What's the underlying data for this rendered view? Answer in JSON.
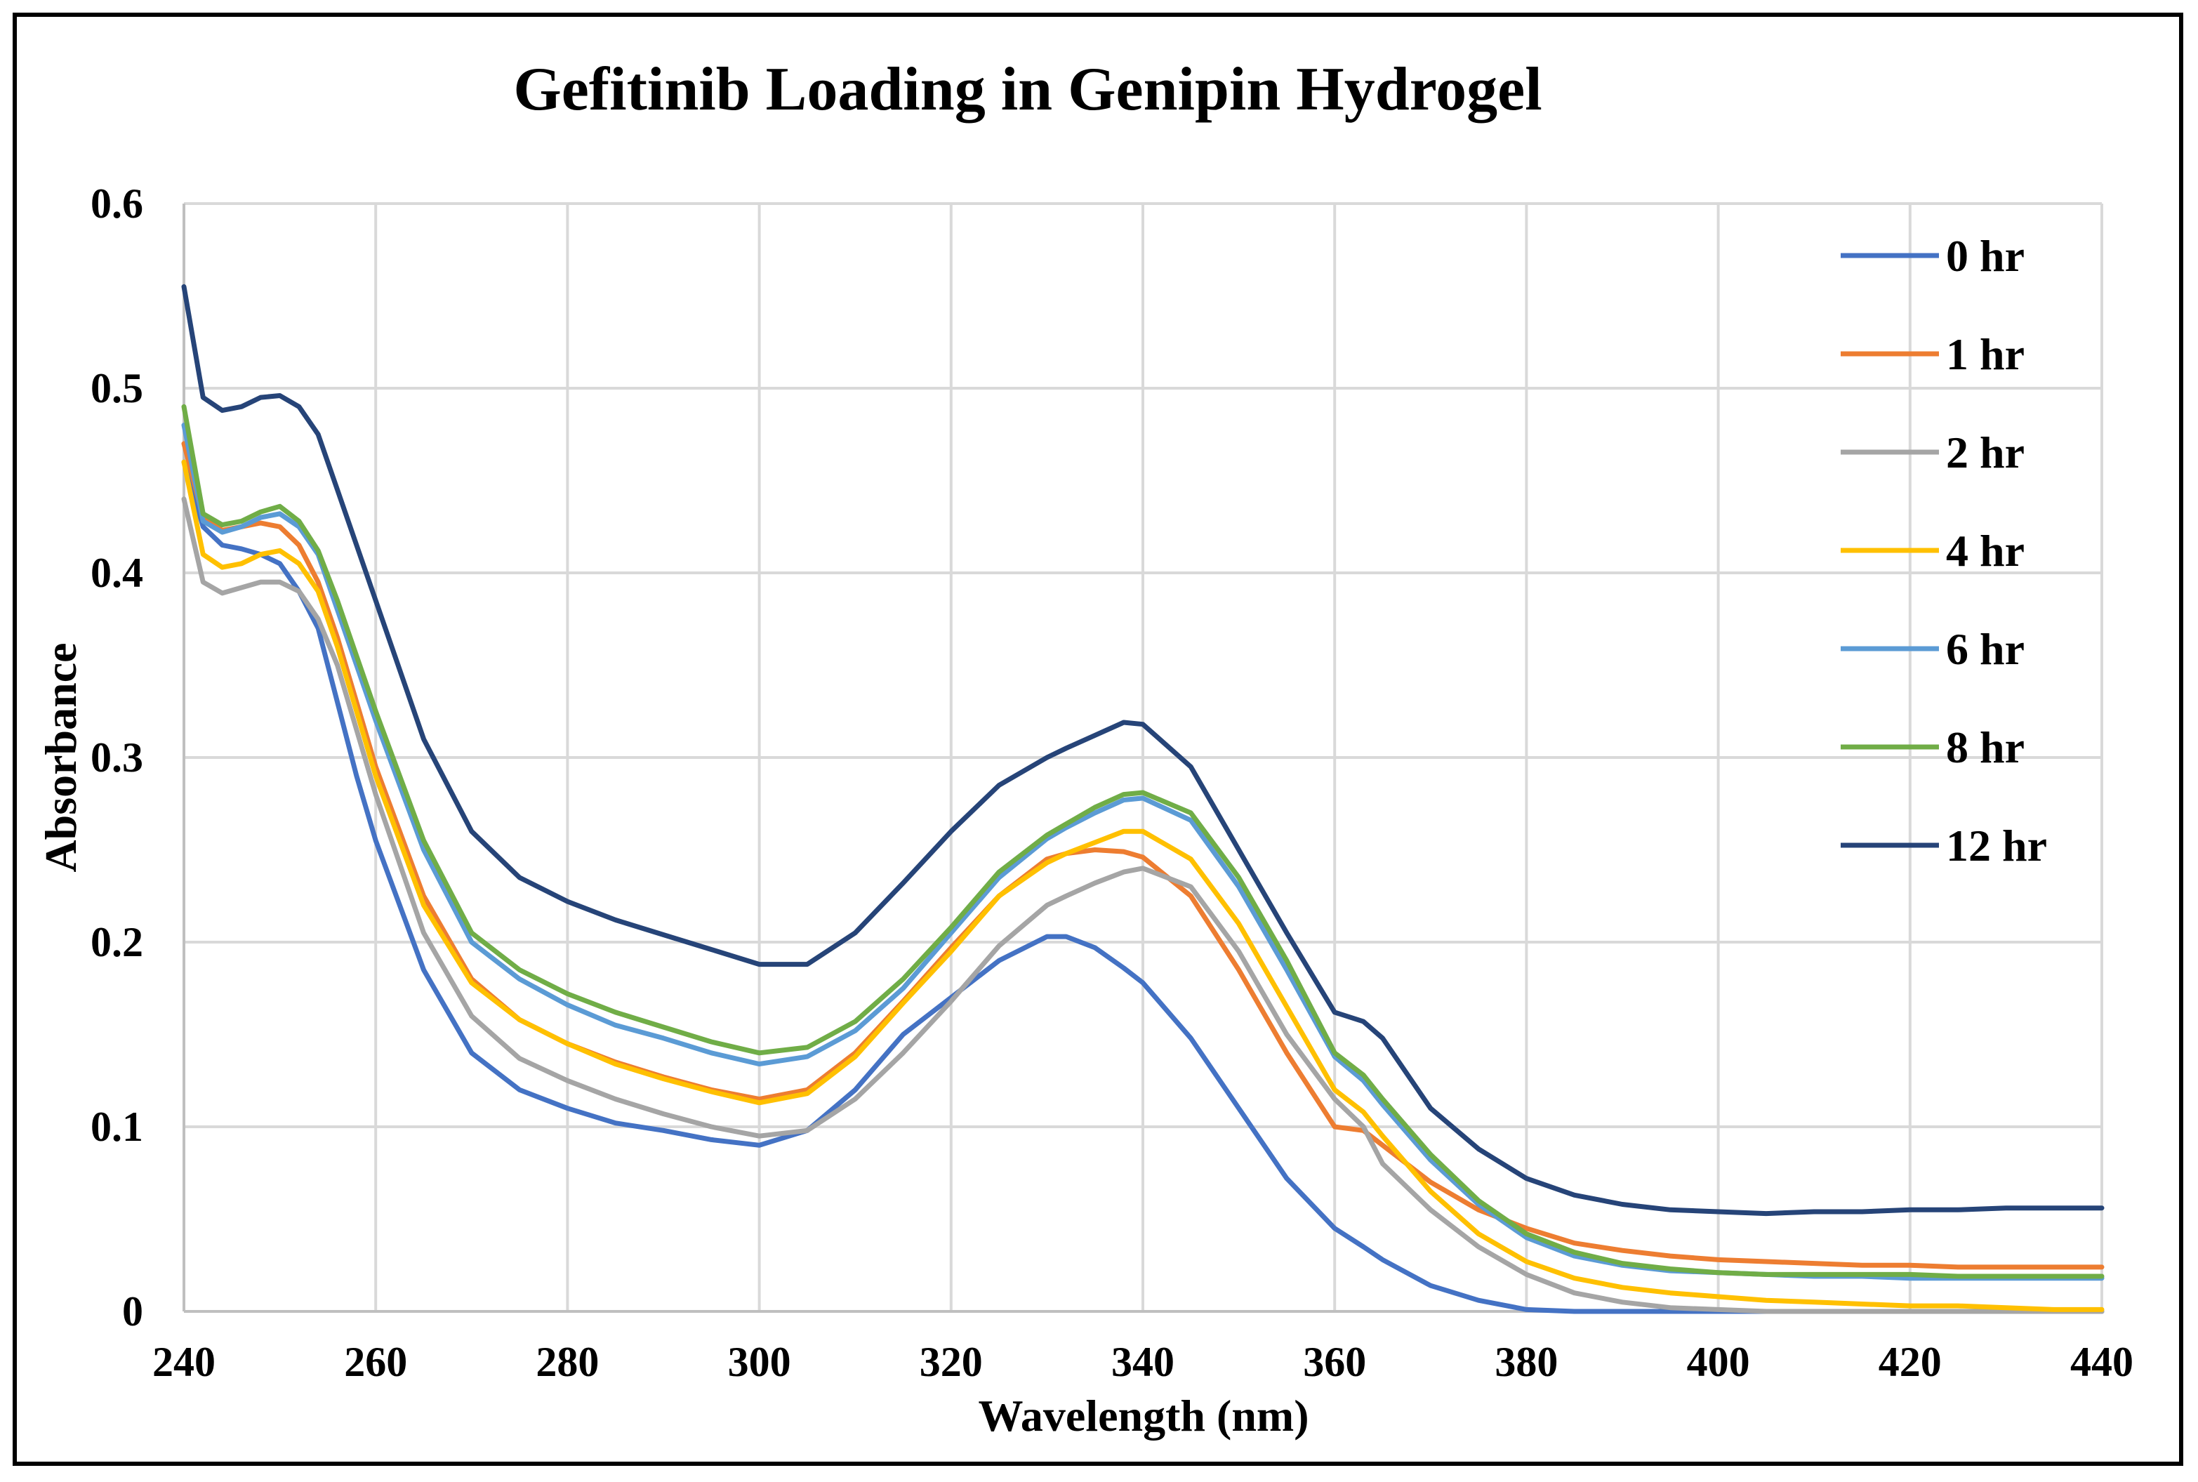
{
  "chart_data": {
    "type": "line",
    "title": "Gefitinib Loading in Genipin Hydrogel",
    "xlabel": "Wavelength (nm)",
    "ylabel": "Absorbance",
    "xlim": [
      240,
      440
    ],
    "ylim": [
      0,
      0.6
    ],
    "xticks": [
      240,
      260,
      280,
      300,
      320,
      340,
      360,
      380,
      400,
      420,
      440
    ],
    "yticks": [
      0,
      0.1,
      0.2,
      0.3,
      0.4,
      0.5,
      0.6
    ],
    "xtick_labels": [
      "240",
      "260",
      "280",
      "300",
      "320",
      "340",
      "360",
      "380",
      "400",
      "420",
      "440"
    ],
    "ytick_labels": [
      "0",
      "0.1",
      "0.2",
      "0.3",
      "0.4",
      "0.5",
      "0.6"
    ],
    "grid": true,
    "legend_position": "right",
    "x": [
      240,
      242,
      244,
      246,
      248,
      250,
      252,
      254,
      256,
      258,
      260,
      265,
      270,
      275,
      280,
      285,
      290,
      295,
      300,
      305,
      310,
      315,
      320,
      325,
      330,
      332,
      335,
      338,
      340,
      345,
      350,
      355,
      360,
      363,
      365,
      370,
      375,
      380,
      385,
      390,
      395,
      400,
      405,
      410,
      415,
      420,
      425,
      430,
      435,
      440
    ],
    "series": [
      {
        "name": "0 hr",
        "color": "#4472C4",
        "values": [
          0.46,
          0.425,
          0.415,
          0.413,
          0.41,
          0.405,
          0.39,
          0.37,
          0.33,
          0.29,
          0.255,
          0.185,
          0.14,
          0.12,
          0.11,
          0.102,
          0.098,
          0.093,
          0.09,
          0.098,
          0.12,
          0.15,
          0.17,
          0.19,
          0.203,
          0.203,
          0.197,
          0.186,
          0.178,
          0.148,
          0.11,
          0.072,
          0.045,
          0.035,
          0.028,
          0.014,
          0.006,
          0.001,
          0.0,
          0.0,
          0.0,
          0.0,
          0.0,
          0.0,
          0.0,
          0.0,
          0.0,
          0.0,
          0.0,
          0.0
        ]
      },
      {
        "name": "1 hr",
        "color": "#ED7D31",
        "values": [
          0.47,
          0.43,
          0.423,
          0.425,
          0.427,
          0.425,
          0.415,
          0.395,
          0.365,
          0.33,
          0.295,
          0.225,
          0.18,
          0.158,
          0.145,
          0.135,
          0.127,
          0.12,
          0.115,
          0.12,
          0.14,
          0.168,
          0.197,
          0.225,
          0.245,
          0.248,
          0.25,
          0.249,
          0.246,
          0.225,
          0.185,
          0.14,
          0.1,
          0.098,
          0.09,
          0.07,
          0.055,
          0.045,
          0.037,
          0.033,
          0.03,
          0.028,
          0.027,
          0.026,
          0.025,
          0.025,
          0.024,
          0.024,
          0.024,
          0.024
        ]
      },
      {
        "name": "2 hr",
        "color": "#A5A5A5",
        "values": [
          0.44,
          0.395,
          0.389,
          0.392,
          0.395,
          0.395,
          0.39,
          0.375,
          0.35,
          0.315,
          0.28,
          0.205,
          0.16,
          0.137,
          0.125,
          0.115,
          0.107,
          0.1,
          0.095,
          0.098,
          0.115,
          0.14,
          0.168,
          0.198,
          0.22,
          0.225,
          0.232,
          0.238,
          0.24,
          0.23,
          0.195,
          0.15,
          0.115,
          0.1,
          0.08,
          0.055,
          0.035,
          0.02,
          0.01,
          0.005,
          0.002,
          0.001,
          0.0,
          0.0,
          0.0,
          0.0,
          0.0,
          0.0,
          0.0,
          0.0
        ]
      },
      {
        "name": "4 hr",
        "color": "#FFC000",
        "values": [
          0.46,
          0.41,
          0.403,
          0.405,
          0.41,
          0.412,
          0.405,
          0.39,
          0.36,
          0.325,
          0.29,
          0.22,
          0.178,
          0.158,
          0.145,
          0.134,
          0.126,
          0.119,
          0.113,
          0.118,
          0.138,
          0.167,
          0.195,
          0.225,
          0.243,
          0.248,
          0.254,
          0.26,
          0.26,
          0.245,
          0.21,
          0.165,
          0.12,
          0.108,
          0.095,
          0.065,
          0.042,
          0.027,
          0.018,
          0.013,
          0.01,
          0.008,
          0.006,
          0.005,
          0.004,
          0.003,
          0.003,
          0.002,
          0.001,
          0.001
        ]
      },
      {
        "name": "6 hr",
        "color": "#5B9BD5",
        "values": [
          0.48,
          0.428,
          0.422,
          0.425,
          0.43,
          0.432,
          0.425,
          0.41,
          0.38,
          0.35,
          0.32,
          0.25,
          0.2,
          0.18,
          0.166,
          0.155,
          0.148,
          0.14,
          0.134,
          0.138,
          0.152,
          0.175,
          0.205,
          0.235,
          0.256,
          0.262,
          0.27,
          0.277,
          0.278,
          0.266,
          0.23,
          0.185,
          0.138,
          0.125,
          0.112,
          0.082,
          0.058,
          0.04,
          0.03,
          0.025,
          0.022,
          0.021,
          0.02,
          0.019,
          0.019,
          0.018,
          0.018,
          0.018,
          0.018,
          0.018
        ]
      },
      {
        "name": "8 hr",
        "color": "#70AD47",
        "values": [
          0.49,
          0.432,
          0.426,
          0.428,
          0.433,
          0.436,
          0.428,
          0.412,
          0.385,
          0.355,
          0.325,
          0.255,
          0.205,
          0.185,
          0.172,
          0.162,
          0.154,
          0.146,
          0.14,
          0.143,
          0.157,
          0.18,
          0.208,
          0.238,
          0.258,
          0.264,
          0.273,
          0.28,
          0.281,
          0.27,
          0.235,
          0.19,
          0.14,
          0.128,
          0.115,
          0.085,
          0.06,
          0.042,
          0.032,
          0.026,
          0.023,
          0.021,
          0.02,
          0.02,
          0.02,
          0.02,
          0.019,
          0.019,
          0.019,
          0.019
        ]
      },
      {
        "name": "12 hr",
        "color": "#264478",
        "values": [
          0.555,
          0.495,
          0.488,
          0.49,
          0.495,
          0.496,
          0.49,
          0.475,
          0.445,
          0.415,
          0.385,
          0.31,
          0.26,
          0.235,
          0.222,
          0.212,
          0.204,
          0.196,
          0.188,
          0.188,
          0.205,
          0.232,
          0.26,
          0.285,
          0.3,
          0.305,
          0.312,
          0.319,
          0.318,
          0.295,
          0.25,
          0.205,
          0.162,
          0.157,
          0.148,
          0.11,
          0.088,
          0.072,
          0.063,
          0.058,
          0.055,
          0.054,
          0.053,
          0.054,
          0.054,
          0.055,
          0.055,
          0.056,
          0.056,
          0.056
        ]
      }
    ]
  }
}
